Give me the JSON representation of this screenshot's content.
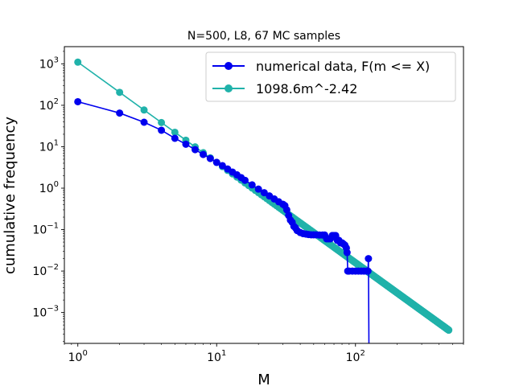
{
  "chart_data": {
    "type": "line",
    "title": "N=500, L8, 67 MC samples",
    "xlabel": "M",
    "ylabel": "cumulative frequency",
    "xscale": "log",
    "yscale": "log",
    "xlim": [
      0.8,
      600
    ],
    "ylim": [
      0.00018,
      2600
    ],
    "xticks": [
      {
        "base": "10",
        "exp": "0",
        "value": 1
      },
      {
        "base": "10",
        "exp": "1",
        "value": 10
      },
      {
        "base": "10",
        "exp": "2",
        "value": 100
      }
    ],
    "yticks": [
      {
        "base": "10",
        "exp": "−3",
        "value": 0.001
      },
      {
        "base": "10",
        "exp": "−2",
        "value": 0.01
      },
      {
        "base": "10",
        "exp": "−1",
        "value": 0.1
      },
      {
        "base": "10",
        "exp": "0",
        "value": 1
      },
      {
        "base": "10",
        "exp": "1",
        "value": 10
      },
      {
        "base": "10",
        "exp": "2",
        "value": 100
      },
      {
        "base": "10",
        "exp": "3",
        "value": 1000
      }
    ],
    "legend_position": "upper-right",
    "grid": false,
    "series": [
      {
        "name": "numerical data, F(m <= X)",
        "color": "#0000ee",
        "marker": "circle",
        "x": [
          1,
          2,
          3,
          4,
          5,
          6,
          7,
          8,
          9,
          10,
          11,
          12,
          13,
          14,
          15,
          16,
          18,
          20,
          22,
          24,
          26,
          28,
          30,
          31,
          32,
          33,
          34,
          35,
          36,
          37,
          38,
          40,
          42,
          44,
          46,
          48,
          50,
          52,
          55,
          58,
          60,
          62,
          64,
          66,
          68,
          70,
          72,
          74,
          76,
          78,
          80,
          82,
          84,
          86,
          87,
          88,
          90,
          95,
          100,
          105,
          110,
          115,
          120,
          123,
          124,
          125
        ],
        "y": [
          122,
          65,
          39,
          25,
          16,
          11.5,
          8.5,
          6.5,
          5.2,
          4.2,
          3.5,
          2.9,
          2.45,
          2.1,
          1.8,
          1.55,
          1.2,
          0.95,
          0.78,
          0.65,
          0.55,
          0.47,
          0.41,
          0.38,
          0.3,
          0.22,
          0.17,
          0.15,
          0.12,
          0.11,
          0.095,
          0.085,
          0.08,
          0.078,
          0.076,
          0.075,
          0.075,
          0.075,
          0.074,
          0.074,
          0.074,
          0.06,
          0.06,
          0.06,
          0.072,
          0.072,
          0.072,
          0.055,
          0.055,
          0.048,
          0.048,
          0.045,
          0.042,
          0.036,
          0.028,
          0.01,
          0.01,
          0.01,
          0.01,
          0.01,
          0.01,
          0.01,
          0.01,
          0.01,
          0.02,
          0.00018
        ]
      },
      {
        "name": "1098.6m^-2.42",
        "color": "#20b2aa",
        "marker": "circle",
        "fit": {
          "a": 1098.6,
          "b": -2.42,
          "x_from": 1,
          "x_to": 470
        }
      }
    ]
  }
}
